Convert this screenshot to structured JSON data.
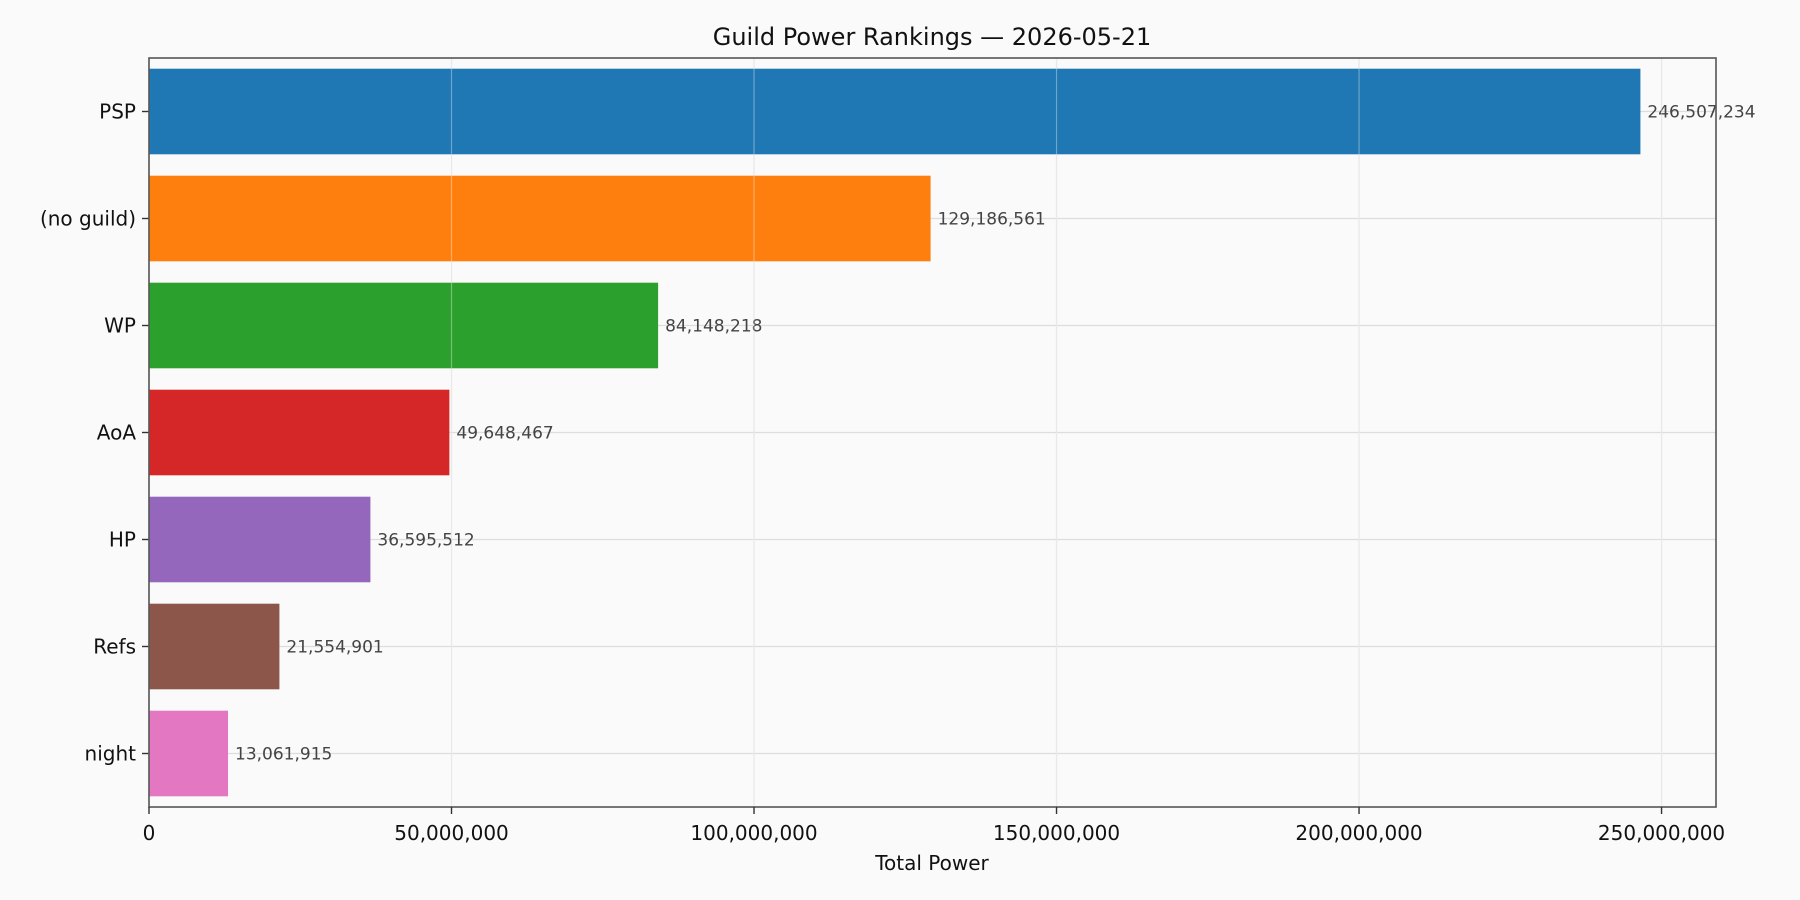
{
  "chart_data": {
    "type": "bar",
    "orientation": "horizontal",
    "title": "Guild Power Rankings — 2026-05-21",
    "xlabel": "Total Power",
    "ylabel": "",
    "xlim": [
      0,
      259000000
    ],
    "xticks": [
      0,
      50000000,
      100000000,
      150000000,
      200000000,
      250000000
    ],
    "xtick_labels": [
      "0",
      "50,000,000",
      "100,000,000",
      "150,000,000",
      "200,000,000",
      "250,000,000"
    ],
    "grid": true,
    "categories": [
      "PSP",
      "(no guild)",
      "WP",
      "AoA",
      "HP",
      "Refs",
      "night"
    ],
    "values": [
      246507234,
      129186561,
      84148218,
      49648467,
      36595512,
      21554901,
      13061915
    ],
    "value_labels": [
      "246,507,234",
      "129,186,561",
      "84,148,218",
      "49,648,467",
      "36,595,512",
      "21,554,901",
      "13,061,915"
    ],
    "colors": [
      "#1f77b4",
      "#ff7f0e",
      "#2ca02c",
      "#d62728",
      "#9467bd",
      "#8c564b",
      "#e377c2"
    ]
  }
}
